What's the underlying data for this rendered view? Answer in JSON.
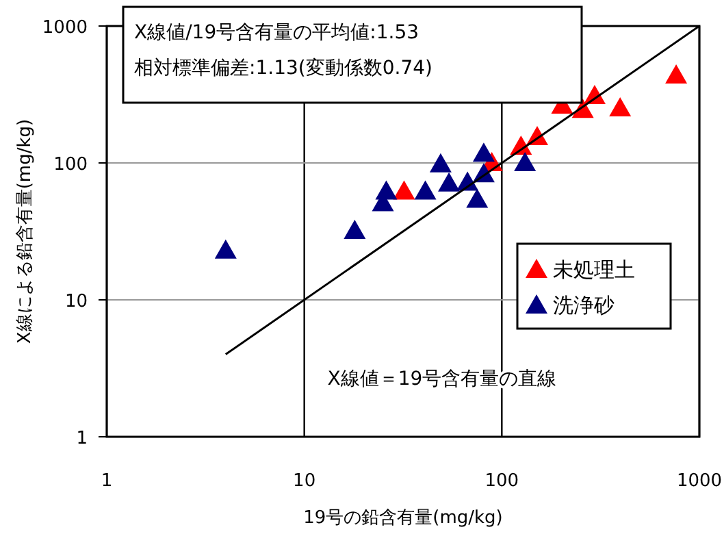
{
  "chart_data": {
    "type": "scatter",
    "xlabel": "19号の鉛含有量(mg/kg)",
    "ylabel": "X線による鉛含有量(mg/kg)",
    "log": "xy",
    "xlim": [
      1,
      1000
    ],
    "ylim": [
      1,
      1000
    ],
    "xticks": [
      1,
      10,
      100,
      1000
    ],
    "yticks": [
      1,
      10,
      100,
      1000
    ],
    "grid": true,
    "legend": "right",
    "marker": "triangle",
    "annotations": [
      "X線値/19号含有量の平均値:1.53\n相対標準偏差:1.13(変動係数0.74)",
      "X線値＝19号含有量の直線"
    ],
    "series": [
      {
        "name": "未処理土",
        "color": "#ff0000",
        "x": [
          32,
          89,
          125,
          151,
          202,
          257,
          295,
          397,
          763
        ],
        "values": [
          62,
          100,
          132,
          155,
          263,
          245,
          309,
          251,
          437
        ]
      },
      {
        "name": "洗浄砂",
        "color": "#000080",
        "x": [
          4,
          18,
          25,
          26,
          41,
          49,
          54,
          67,
          75,
          81,
          81,
          131
        ],
        "values": [
          23,
          32,
          51,
          62,
          62,
          98,
          71,
          72,
          54,
          117,
          83,
          100
        ]
      },
      {
        "type": "line",
        "color": "#000000",
        "marker": "none",
        "x": [
          4,
          1000
        ],
        "values": [
          4,
          1000
        ]
      }
    ]
  }
}
